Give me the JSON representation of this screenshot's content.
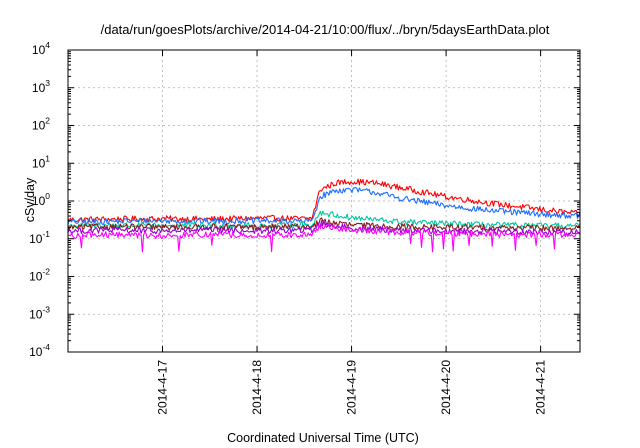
{
  "chart_data": {
    "type": "line",
    "title": "/data/run/goesPlots/archive/2014-04-21/10:00/flux/../bryn/5daysEarthData.plot",
    "xlabel": "Coordinated Universal Time (UTC)",
    "ylabel": "cSv/day",
    "x_unit": "date (UTC)",
    "xlim": [
      "2014-04-16T00:00",
      "2014-04-21T10:00"
    ],
    "x_ticks": [
      "2014-4-17",
      "2014-4-18",
      "2014-4-19",
      "2014-4-20",
      "2014-4-21"
    ],
    "y_scale": "log",
    "ylim": [
      0.0001,
      10000
    ],
    "y_ticks": [
      {
        "base": "10",
        "exp": "4"
      },
      {
        "base": "10",
        "exp": "3"
      },
      {
        "base": "10",
        "exp": "2"
      },
      {
        "base": "10",
        "exp": "1"
      },
      {
        "base": "10",
        "exp": "0"
      },
      {
        "base": "10",
        "exp": "-1"
      },
      {
        "base": "10",
        "exp": "-2"
      },
      {
        "base": "10",
        "exp": "-3"
      },
      {
        "base": "10",
        "exp": "-4"
      }
    ],
    "grid": true,
    "legend": "none",
    "x": [
      "2014-04-16T00:00",
      "2014-04-16T12:00",
      "2014-04-17T00:00",
      "2014-04-17T12:00",
      "2014-04-18T00:00",
      "2014-04-18T12:00",
      "2014-04-18T14:00",
      "2014-04-18T16:00",
      "2014-04-18T20:00",
      "2014-04-19T00:00",
      "2014-04-19T06:00",
      "2014-04-19T12:00",
      "2014-04-20T00:00",
      "2014-04-20T12:00",
      "2014-04-21T00:00",
      "2014-04-21T10:00"
    ],
    "series": [
      {
        "color": "#ff0000",
        "values": [
          0.32,
          0.33,
          0.34,
          0.33,
          0.35,
          0.34,
          0.35,
          2.0,
          3.0,
          3.3,
          3.0,
          2.3,
          1.3,
          0.85,
          0.6,
          0.45
        ]
      },
      {
        "color": "#1e6eff",
        "values": [
          0.28,
          0.29,
          0.3,
          0.29,
          0.3,
          0.29,
          0.3,
          1.3,
          1.9,
          2.0,
          1.7,
          1.2,
          0.75,
          0.55,
          0.45,
          0.4
        ]
      },
      {
        "color": "#00c8a0",
        "values": [
          0.22,
          0.23,
          0.22,
          0.23,
          0.22,
          0.23,
          0.23,
          0.5,
          0.42,
          0.36,
          0.32,
          0.28,
          0.25,
          0.23,
          0.22,
          0.22
        ]
      },
      {
        "color": "#8b1a1a",
        "values": [
          0.2,
          0.21,
          0.2,
          0.21,
          0.2,
          0.21,
          0.21,
          0.3,
          0.26,
          0.23,
          0.22,
          0.21,
          0.2,
          0.2,
          0.19,
          0.19
        ]
      },
      {
        "color": "#9400d3",
        "values": [
          0.16,
          0.17,
          0.16,
          0.17,
          0.16,
          0.17,
          0.17,
          0.26,
          0.22,
          0.19,
          0.18,
          0.17,
          0.16,
          0.16,
          0.15,
          0.15
        ]
      },
      {
        "color": "#ff00ff",
        "values": [
          0.12,
          0.13,
          0.12,
          0.13,
          0.12,
          0.13,
          0.13,
          0.22,
          0.19,
          0.17,
          0.16,
          0.15,
          0.14,
          0.13,
          0.13,
          0.12
        ]
      }
    ]
  }
}
